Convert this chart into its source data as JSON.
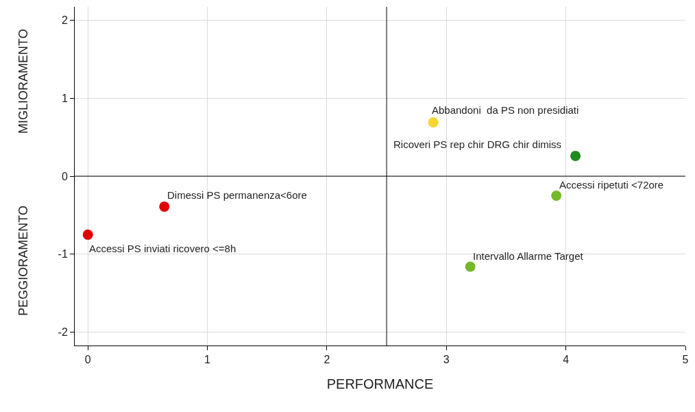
{
  "chart_data": {
    "type": "scatter",
    "xlabel": "PERFORMANCE",
    "ylabel": "MIGLIORAMENTO",
    "x": [
      0,
      0.64,
      2.89,
      4.08,
      3.92,
      3.2
    ],
    "values": [
      -0.75,
      -0.39,
      0.69,
      0.26,
      -0.25,
      -1.16
    ],
    "colors": [
      "#e00000",
      "#e00000",
      "#f5d632",
      "#1e8c1e",
      "#76b82a",
      "#76b82a"
    ],
    "marker": "circle",
    "xlim": [
      -0.11,
      5
    ],
    "xticks": [
      0,
      1,
      2,
      3,
      4,
      5
    ],
    "ylim": [
      -2.17,
      2.17
    ],
    "yticks": [
      -2,
      -1,
      0,
      1,
      2
    ],
    "grid": true,
    "ref_lines": [
      {
        "axis": "x",
        "value": 2.5,
        "color": "#000000"
      },
      {
        "axis": "y",
        "value": 0,
        "color": "#000000"
      }
    ],
    "annotations": [
      {
        "text": "Accessi PS inviati ricovero <=8h",
        "x": 0,
        "y": -0.75
      },
      {
        "text": "Dimessi PS permanenza<6ore",
        "x": 0.64,
        "y": -0.39
      },
      {
        "text": "Abbandoni  da PS non presidiati",
        "x": 2.89,
        "y": 0.69
      },
      {
        "text": "Ricoveri PS rep chir DRG chir dimiss",
        "x": 4.08,
        "y": 0.26
      },
      {
        "text": "Accessi ripetuti <72ore",
        "x": 3.92,
        "y": -0.25
      },
      {
        "text": "Intervallo Allarme Target",
        "x": 3.2,
        "y": -1.16
      },
      "PEGGIORAMENTO"
    ]
  }
}
